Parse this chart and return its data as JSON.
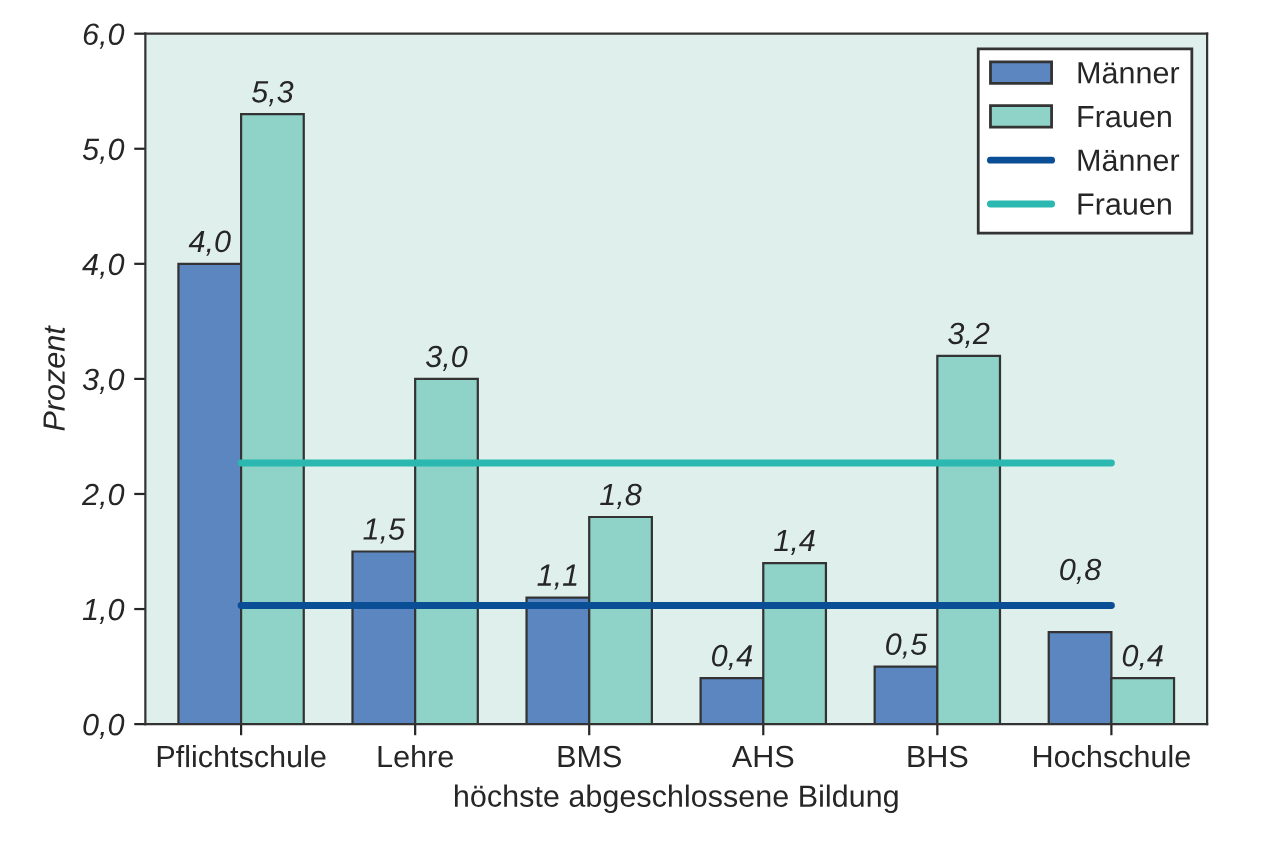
{
  "chart_data": {
    "type": "bar",
    "xlabel": "höchste abgeschlossene Bildung",
    "ylabel": "Prozent",
    "categories": [
      "Pflichtschule",
      "Lehre",
      "BMS",
      "AHS",
      "BHS",
      "Hochschule"
    ],
    "series": [
      {
        "name": "Männer",
        "color": "#5b86c0",
        "values": [
          4.0,
          1.5,
          1.1,
          0.4,
          0.5,
          0.8
        ],
        "value_labels": [
          "4,0",
          "1,5",
          "1,1",
          "0,4",
          "0,5",
          "0,8"
        ]
      },
      {
        "name": "Frauen",
        "color": "#8fd3c8",
        "values": [
          5.3,
          3.0,
          1.8,
          1.4,
          3.2,
          0.4
        ],
        "value_labels": [
          "5,3",
          "3,0",
          "1,8",
          "1,4",
          "3,2",
          "0,4"
        ]
      },
      {
        "name": "Männer",
        "type": "line",
        "color": "#0a4f96",
        "values": [
          1.03,
          1.03,
          1.03,
          1.03,
          1.03,
          1.03
        ]
      },
      {
        "name": "Frauen",
        "type": "line",
        "color": "#2ab8b0",
        "values": [
          2.27,
          2.27,
          2.27,
          2.27,
          2.27,
          2.27
        ]
      }
    ],
    "ylim": [
      0,
      6
    ],
    "yticks": [
      {
        "value": 0,
        "label": "0,0"
      },
      {
        "value": 1,
        "label": "1,0"
      },
      {
        "value": 2,
        "label": "2,0"
      },
      {
        "value": 3,
        "label": "3,0"
      },
      {
        "value": 4,
        "label": "4,0"
      },
      {
        "value": 5,
        "label": "5,0"
      },
      {
        "value": 6,
        "label": "6,0"
      }
    ],
    "grid": false,
    "legend": "top right",
    "marker": "none",
    "line_style": "solid"
  }
}
